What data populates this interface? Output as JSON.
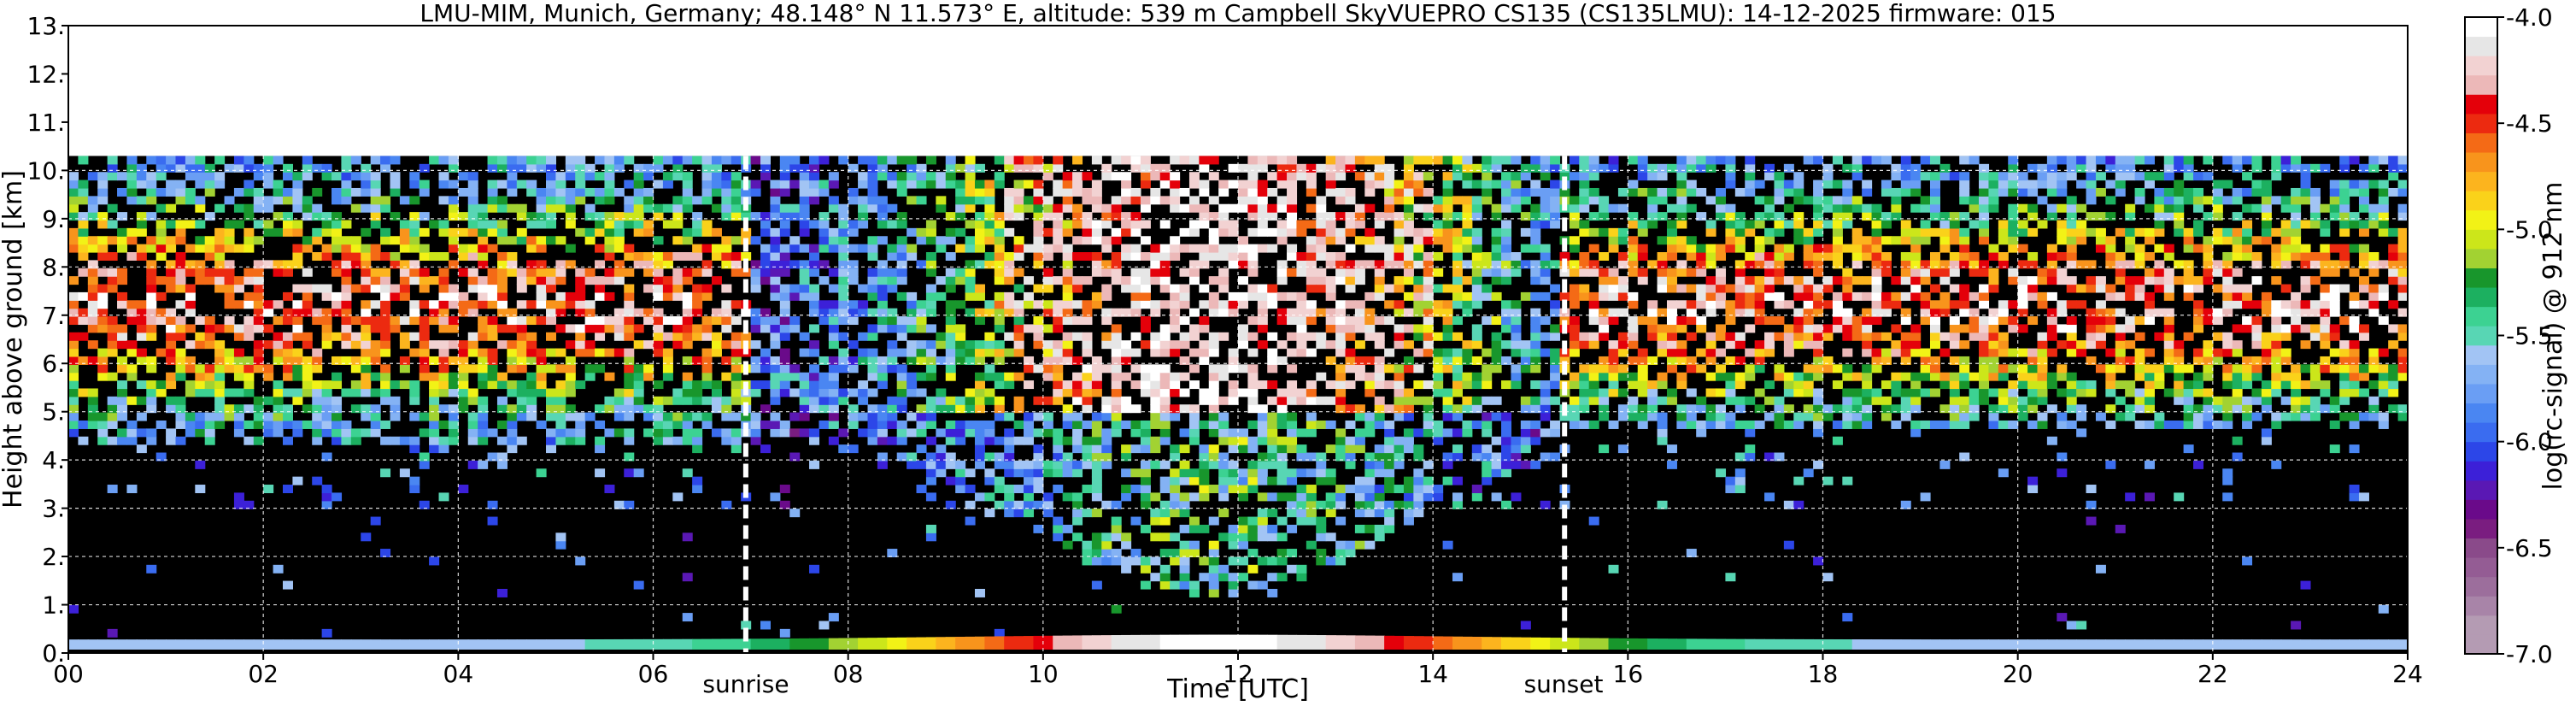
{
  "chart_data": {
    "type": "heatmap",
    "title": "LMU-MIM, Munich, Germany; 48.148° N 11.573° E, altitude: 539 m    Campbell SkyVUEPRO CS135 (CS135LMU): 14-12-2025    firmware: 015",
    "xlabel": "Time [UTC]",
    "ylabel": "Height above ground [km]",
    "xlim": [
      0,
      24
    ],
    "ylim": [
      0,
      13
    ],
    "x_ticks": [
      {
        "value": 0,
        "label": "00"
      },
      {
        "value": 2,
        "label": "02"
      },
      {
        "value": 4,
        "label": "04"
      },
      {
        "value": 6,
        "label": "06"
      },
      {
        "value": 8,
        "label": "08"
      },
      {
        "value": 10,
        "label": "10"
      },
      {
        "value": 12,
        "label": "12"
      },
      {
        "value": 14,
        "label": "14"
      },
      {
        "value": 16,
        "label": "16"
      },
      {
        "value": 18,
        "label": "18"
      },
      {
        "value": 20,
        "label": "20"
      },
      {
        "value": 22,
        "label": "22"
      },
      {
        "value": 24,
        "label": "24"
      }
    ],
    "y_ticks": [
      {
        "value": 0,
        "label": "0."
      },
      {
        "value": 1,
        "label": "1."
      },
      {
        "value": 2,
        "label": "2."
      },
      {
        "value": 3,
        "label": "3."
      },
      {
        "value": 4,
        "label": "4."
      },
      {
        "value": 5,
        "label": "5."
      },
      {
        "value": 6,
        "label": "6."
      },
      {
        "value": 7,
        "label": "7."
      },
      {
        "value": 8,
        "label": "8."
      },
      {
        "value": 9,
        "label": "9."
      },
      {
        "value": 10,
        "label": "10."
      },
      {
        "value": 11,
        "label": "11."
      },
      {
        "value": 12,
        "label": "12."
      },
      {
        "value": 13,
        "label": "13."
      }
    ],
    "grid": true,
    "data_ceiling_km": 10.3,
    "sunrise": {
      "time": 6.95,
      "label": "sunrise"
    },
    "sunset": {
      "time": 15.35,
      "label": "sunset"
    },
    "colorbar": {
      "label": "log(rc-signal) @ 912 nm",
      "range": [
        -7.0,
        -4.0
      ],
      "ticks": [
        {
          "value": -4.0,
          "label": "-4.0"
        },
        {
          "value": -4.5,
          "label": "-4.5"
        },
        {
          "value": -5.0,
          "label": "-5.0"
        },
        {
          "value": -5.5,
          "label": "-5.5"
        },
        {
          "value": -6.0,
          "label": "-6.0"
        },
        {
          "value": -6.5,
          "label": "-6.5"
        },
        {
          "value": -7.0,
          "label": "-7.0"
        }
      ],
      "colors": [
        "#b49bb3",
        "#b49bb3",
        "#a884a8",
        "#9c6e9c",
        "#945c94",
        "#8a4a8a",
        "#7a1d80",
        "#6a0a8a",
        "#5a18b4",
        "#3c20d8",
        "#2c46e8",
        "#3a6cf0",
        "#4a86f2",
        "#6a9ef4",
        "#84b2f4",
        "#a2c4f4",
        "#58d6b4",
        "#3cd292",
        "#1cb060",
        "#18962c",
        "#a2d232",
        "#cce61a",
        "#f2f216",
        "#fad21a",
        "#fcb41e",
        "#f8941c",
        "#f46a16",
        "#ec2a10",
        "#e4000a",
        "#ecb8b8",
        "#f2d2d2",
        "#e6e6e6",
        "#ffffff"
      ]
    }
  },
  "colors": {
    "background": "#000000",
    "empty": "#ffffff",
    "marker_line": "#ffffff"
  }
}
